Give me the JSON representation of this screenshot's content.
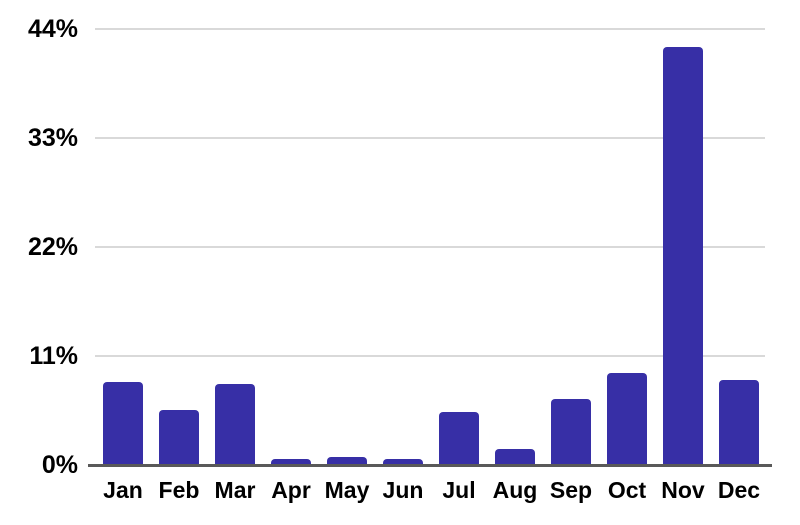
{
  "chart_data": {
    "type": "bar",
    "title": "",
    "categories": [
      "Jan",
      "Feb",
      "Mar",
      "Apr",
      "May",
      "Jun",
      "Jul",
      "Aug",
      "Sep",
      "Oct",
      "Nov",
      "Dec"
    ],
    "values": [
      8.4,
      5.6,
      8.2,
      0.6,
      0.8,
      0.6,
      5.4,
      1.6,
      6.7,
      9.3,
      42.2,
      8.6
    ],
    "xlabel": "",
    "ylabel": "",
    "ylim": [
      0,
      44
    ],
    "y_ticks": [
      {
        "label": "0%",
        "value": 0
      },
      {
        "label": "11%",
        "value": 11
      },
      {
        "label": "22%",
        "value": 22
      },
      {
        "label": "33%",
        "value": 33
      },
      {
        "label": "44%",
        "value": 44
      }
    ],
    "grid": true,
    "legend": null,
    "colors": {
      "bar": "#372fa6",
      "gridline": "#d9d9d9",
      "axis_line": "#595959",
      "label_text": "#000000",
      "background": "#ffffff"
    }
  }
}
